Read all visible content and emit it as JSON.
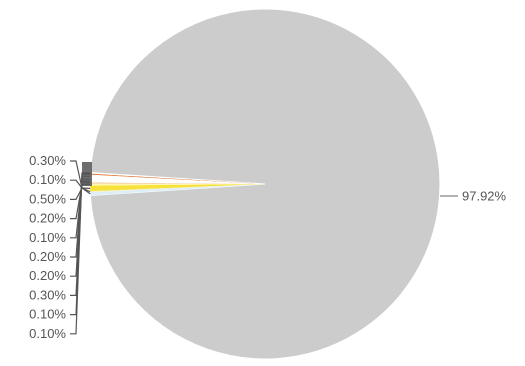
{
  "chart_data": {
    "type": "pie",
    "title": "",
    "legend": "none",
    "slices": [
      {
        "label": "97.92%",
        "value": 97.92,
        "color": "#cccccc"
      },
      {
        "label": "0.30%",
        "value": 0.3,
        "color": "#ddeef8"
      },
      {
        "label": "0.10%",
        "value": 0.1,
        "color": "#f5f0c8"
      },
      {
        "label": "0.50%",
        "value": 0.5,
        "color": "#f6e23a"
      },
      {
        "label": "0.20%",
        "value": 0.2,
        "color": "#fff6b0"
      },
      {
        "label": "0.10%",
        "value": 0.1,
        "color": "#f0c8a0"
      },
      {
        "label": "0.20%",
        "value": 0.2,
        "color": "#ffffff"
      },
      {
        "label": "0.20%",
        "value": 0.2,
        "color": "#ffffff"
      },
      {
        "label": "0.30%",
        "value": 0.3,
        "color": "#ffffff"
      },
      {
        "label": "0.10%",
        "value": 0.1,
        "color": "#e07a3a"
      },
      {
        "label": "0.10%",
        "value": 0.1,
        "color": "#ffffff"
      }
    ]
  }
}
